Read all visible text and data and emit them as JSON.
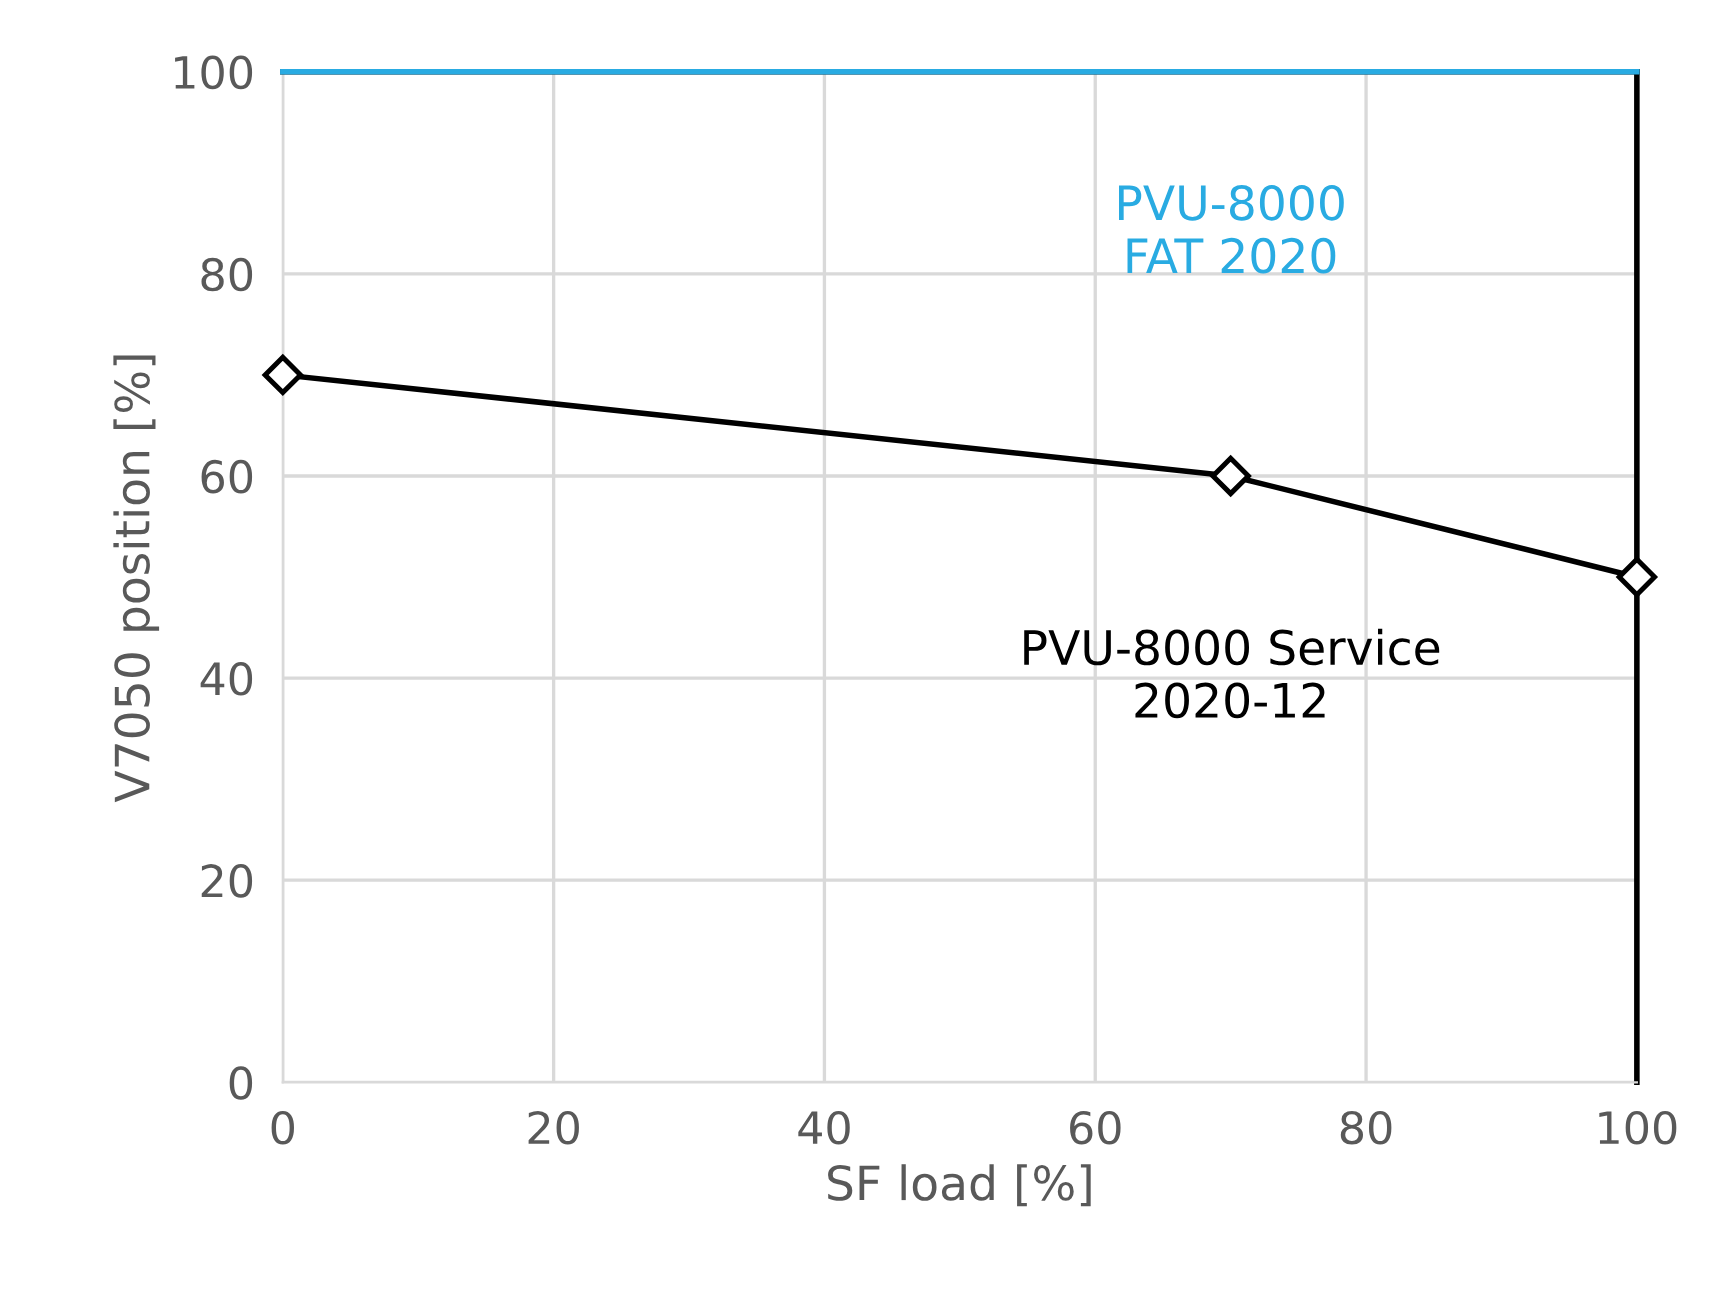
{
  "chart_data": {
    "type": "line",
    "xlabel": "SF load [%]",
    "ylabel": "V7050 position [%]",
    "series": [
      {
        "name": "PVU-8000\nFAT 2020",
        "color": "#29abe2",
        "x": [
          0,
          100
        ],
        "values": [
          100,
          100
        ],
        "marker": "none"
      },
      {
        "name": "PVU-8000 Service\n2020-12",
        "color": "#000000",
        "x": [
          0,
          70,
          100
        ],
        "values": [
          70,
          60,
          50
        ],
        "marker": "diamond"
      }
    ],
    "xlim": [
      0,
      100
    ],
    "ylim": [
      0,
      100
    ],
    "xticks": [
      0,
      20,
      40,
      60,
      80,
      100
    ],
    "yticks": [
      0,
      20,
      40,
      60,
      80,
      100
    ],
    "grid": true,
    "legend": false,
    "line_style": "solid"
  }
}
